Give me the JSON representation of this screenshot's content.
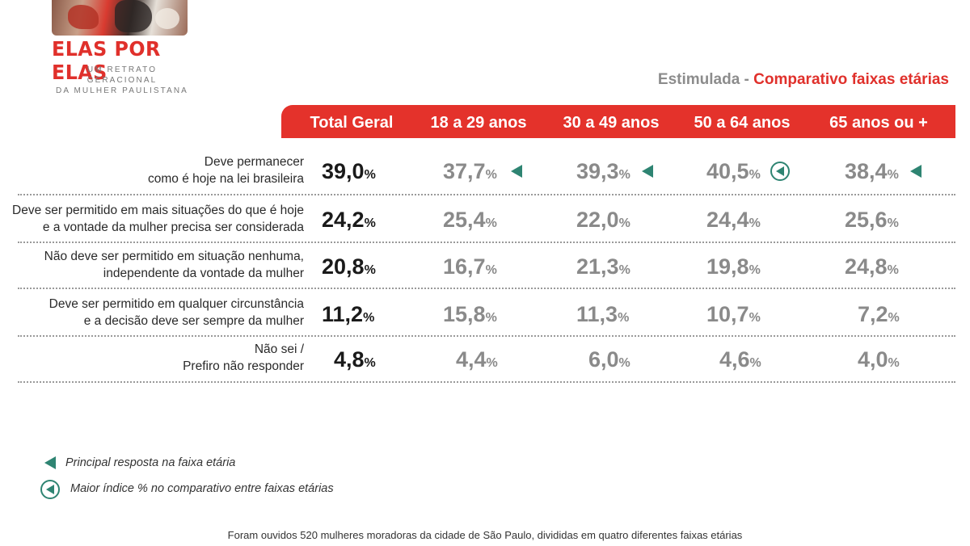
{
  "brand": {
    "title": "ELAS POR ELAS",
    "subtitle_line1": "UM RETRATO GERACIONAL",
    "subtitle_line2": "DA MULHER PAULISTANA"
  },
  "heading": {
    "prefix": "Estimulada -",
    "highlight": "Comparativo faixas etárias"
  },
  "columns": [
    "Total Geral",
    "18 a 29 anos",
    "30 a 49 anos",
    "50 a 64 anos",
    "65 anos ou +"
  ],
  "rows": [
    {
      "label_line1": "Deve permanecer",
      "label_line2": "como é hoje na lei brasileira",
      "values": [
        "39,0",
        "37,7",
        "39,3",
        "40,5",
        "38,4"
      ]
    },
    {
      "label_line1": "Deve ser permitido  em mais situações do que é hoje",
      "label_line2": "e a vontade da mulher precisa ser considerada",
      "values": [
        "24,2",
        "25,4",
        "22,0",
        "24,4",
        "25,6"
      ]
    },
    {
      "label_line1": "Não deve ser permitido em situação nenhuma,",
      "label_line2": "independente da vontade da mulher",
      "values": [
        "20,8",
        "16,7",
        "21,3",
        "19,8",
        "24,8"
      ]
    },
    {
      "label_line1": "Deve ser permitido em qualquer circunstância",
      "label_line2": "e a decisão deve ser sempre da mulher",
      "values": [
        "11,2",
        "15,8",
        "11,3",
        "10,7",
        "7,2"
      ]
    },
    {
      "label_line1": "Não sei /",
      "label_line2": "Prefiro não responder",
      "values": [
        "4,8",
        "4,4",
        "6,0",
        "4,6",
        "4,0"
      ]
    }
  ],
  "percent_sign": "%",
  "markers": {
    "principal_icon": "triangle-left-icon",
    "maior_icon": "circled-triangle-left-icon",
    "color": "#2e8472"
  },
  "legend": {
    "principal": "Principal resposta na faixa etária",
    "maior": "Maior índice % no comparativo entre faixas etárias"
  },
  "footnote": "Foram ouvidos 520 mulheres moradoras da cidade de São Paulo, divididas em quatro diferentes faixas etárias",
  "colors": {
    "accent": "#e4322b",
    "marker": "#2e8472",
    "muted_value": "#8a8a8a"
  }
}
